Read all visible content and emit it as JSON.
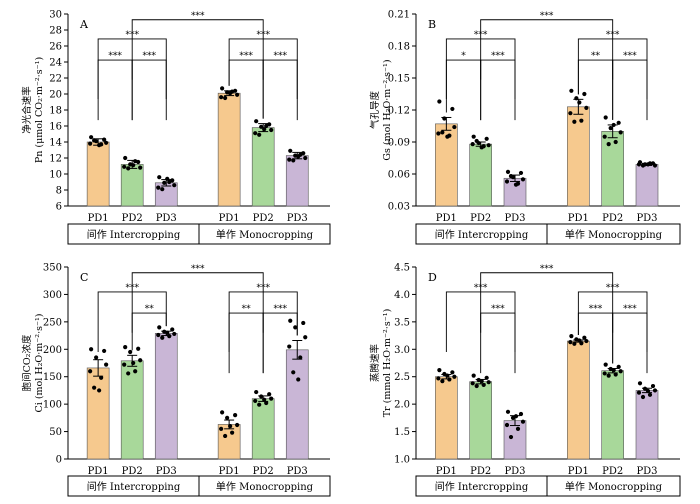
{
  "figure": {
    "colors": {
      "PD1": "#f6c98e",
      "PD2": "#a8d89a",
      "PD3": "#c9b6d6",
      "dots": "#000000",
      "lines": "#000000"
    },
    "group_labels": [
      "间作 Intercropping",
      "单作 Monocropping"
    ]
  },
  "chart_data": [
    {
      "panel": "A",
      "type": "bar",
      "ylabel_cn": "净光合速率",
      "ylabel_unit": "Pn (μmol CO₂·m⁻²·s⁻¹)",
      "ylim": [
        6,
        30
      ],
      "yticks": [
        6,
        8,
        10,
        12,
        14,
        16,
        18,
        20,
        22,
        24,
        26,
        28,
        30
      ],
      "categories": [
        "PD1",
        "PD2",
        "PD3"
      ],
      "groups": [
        {
          "name": "间作 Intercropping",
          "values": [
            14.0,
            11.2,
            8.9
          ],
          "errors": [
            0.4,
            0.5,
            0.4
          ],
          "points": [
            [
              14.6,
              14.3,
              14.1,
              13.9,
              13.8,
              13.7,
              14.2,
              13.6
            ],
            [
              12.0,
              11.5,
              11.2,
              10.8,
              10.9,
              11.6,
              10.7,
              11.1
            ],
            [
              9.6,
              9.2,
              8.9,
              8.6,
              8.3,
              9.0,
              8.1,
              9.4
            ]
          ]
        },
        {
          "name": "单作 Monocropping",
          "values": [
            20.1,
            15.8,
            12.3
          ],
          "errors": [
            0.3,
            0.5,
            0.4
          ],
          "points": [
            [
              20.7,
              20.4,
              20.2,
              19.9,
              19.6,
              20.3,
              19.5,
              20.1
            ],
            [
              16.6,
              16.2,
              15.9,
              15.5,
              15.1,
              16.0,
              14.9,
              15.6
            ],
            [
              12.9,
              12.6,
              12.3,
              12.0,
              11.8,
              12.4,
              11.7,
              12.2
            ]
          ]
        }
      ],
      "annotations": [
        {
          "from": [
            0,
            0
          ],
          "to": [
            0,
            1
          ],
          "label": "***",
          "level": 0
        },
        {
          "from": [
            0,
            1
          ],
          "to": [
            0,
            2
          ],
          "label": "***",
          "level": 0
        },
        {
          "from": [
            0,
            0
          ],
          "to": [
            0,
            2
          ],
          "label": "***",
          "level": 1
        },
        {
          "from": [
            1,
            0
          ],
          "to": [
            1,
            1
          ],
          "label": "***",
          "level": 0
        },
        {
          "from": [
            1,
            1
          ],
          "to": [
            1,
            2
          ],
          "label": "***",
          "level": 0
        },
        {
          "from": [
            1,
            0
          ],
          "to": [
            1,
            2
          ],
          "label": "***",
          "level": 1
        },
        {
          "from": [
            0,
            1
          ],
          "to": [
            1,
            1
          ],
          "label": "***",
          "level": 2
        }
      ]
    },
    {
      "panel": "B",
      "type": "bar",
      "ylabel_cn": "气孔导度",
      "ylabel_unit": "Gs (mol H₂O·m⁻²·s⁻¹)",
      "ylim": [
        0.03,
        0.21
      ],
      "yticks": [
        0.03,
        0.06,
        0.09,
        0.12,
        0.15,
        0.18,
        0.21
      ],
      "categories": [
        "PD1",
        "PD2",
        "PD3"
      ],
      "groups": [
        {
          "name": "间作 Intercropping",
          "values": [
            0.107,
            0.088,
            0.056
          ],
          "errors": [
            0.006,
            0.002,
            0.003
          ],
          "points": [
            [
              0.128,
              0.121,
              0.112,
              0.104,
              0.098,
              0.096,
              0.099,
              0.095
            ],
            [
              0.095,
              0.093,
              0.089,
              0.087,
              0.088,
              0.086,
              0.091,
              0.085
            ],
            [
              0.062,
              0.061,
              0.057,
              0.055,
              0.053,
              0.051,
              0.058,
              0.05
            ]
          ]
        },
        {
          "name": "单作 Monocropping",
          "values": [
            0.123,
            0.1,
            0.069
          ],
          "errors": [
            0.007,
            0.006,
            0.001
          ],
          "points": [
            [
              0.138,
              0.135,
              0.131,
              0.122,
              0.117,
              0.11,
              0.109,
              0.127
            ],
            [
              0.113,
              0.108,
              0.103,
              0.099,
              0.095,
              0.09,
              0.088,
              0.106
            ],
            [
              0.071,
              0.07,
              0.069,
              0.068,
              0.069,
              0.07,
              0.068,
              0.069
            ]
          ]
        }
      ],
      "annotations": [
        {
          "from": [
            0,
            0
          ],
          "to": [
            0,
            1
          ],
          "label": "*",
          "level": 0
        },
        {
          "from": [
            0,
            1
          ],
          "to": [
            0,
            2
          ],
          "label": "***",
          "level": 0
        },
        {
          "from": [
            0,
            0
          ],
          "to": [
            0,
            2
          ],
          "label": "***",
          "level": 1
        },
        {
          "from": [
            1,
            0
          ],
          "to": [
            1,
            1
          ],
          "label": "**",
          "level": 0
        },
        {
          "from": [
            1,
            1
          ],
          "to": [
            1,
            2
          ],
          "label": "***",
          "level": 0
        },
        {
          "from": [
            1,
            0
          ],
          "to": [
            1,
            2
          ],
          "label": "***",
          "level": 1
        },
        {
          "from": [
            0,
            1
          ],
          "to": [
            1,
            1
          ],
          "label": "***",
          "level": 2
        }
      ]
    },
    {
      "panel": "C",
      "type": "bar",
      "ylabel_cn": "胞间CO₂浓度",
      "ylabel_unit": "Ci (mol H₂O·m⁻²·s⁻¹)",
      "ylim": [
        0,
        350
      ],
      "yticks": [
        0,
        50,
        100,
        150,
        200,
        250,
        300,
        350
      ],
      "categories": [
        "PD1",
        "PD2",
        "PD3"
      ],
      "groups": [
        {
          "name": "间作 Intercropping",
          "values": [
            166,
            179,
            229
          ],
          "errors": [
            15,
            10,
            4
          ],
          "points": [
            [
              200,
              197,
              185,
              172,
              160,
              148,
              130,
              125
            ],
            [
              204,
              201,
              195,
              180,
              172,
              160,
              156,
              175
            ],
            [
              240,
              236,
              232,
              228,
              226,
              224,
              221,
              230
            ]
          ]
        },
        {
          "name": "单作 Monocropping",
          "values": [
            63,
            110,
            199
          ],
          "errors": [
            8,
            5,
            17
          ],
          "points": [
            [
              85,
              80,
              75,
              62,
              55,
              48,
              42,
              60
            ],
            [
              122,
              118,
              114,
              110,
              106,
              102,
              99,
              108
            ],
            [
              252,
              248,
              240,
              222,
              205,
              185,
              158,
              145
            ]
          ]
        }
      ],
      "annotations": [
        {
          "from": [
            0,
            1
          ],
          "to": [
            0,
            2
          ],
          "label": "**",
          "level": 0
        },
        {
          "from": [
            0,
            0
          ],
          "to": [
            0,
            2
          ],
          "label": "***",
          "level": 1
        },
        {
          "from": [
            1,
            0
          ],
          "to": [
            1,
            1
          ],
          "label": "**",
          "level": 0
        },
        {
          "from": [
            1,
            1
          ],
          "to": [
            1,
            2
          ],
          "label": "***",
          "level": 0
        },
        {
          "from": [
            1,
            0
          ],
          "to": [
            1,
            2
          ],
          "label": "***",
          "level": 1
        },
        {
          "from": [
            0,
            1
          ],
          "to": [
            1,
            1
          ],
          "label": "***",
          "level": 2
        }
      ]
    },
    {
      "panel": "D",
      "type": "bar",
      "ylabel_cn": "蒸腾速率",
      "ylabel_unit": "Tr (mmol H₂O·m⁻²·s⁻¹)",
      "ylim": [
        1.0,
        4.5
      ],
      "yticks": [
        1.0,
        1.5,
        2.0,
        2.5,
        3.0,
        3.5,
        4.0,
        4.5
      ],
      "categories": [
        "PD1",
        "PD2",
        "PD3"
      ],
      "groups": [
        {
          "name": "间作 Intercropping",
          "values": [
            2.5,
            2.41,
            1.7
          ],
          "errors": [
            0.04,
            0.04,
            0.09
          ],
          "points": [
            [
              2.62,
              2.58,
              2.55,
              2.5,
              2.47,
              2.45,
              2.42,
              2.52
            ],
            [
              2.52,
              2.48,
              2.44,
              2.4,
              2.38,
              2.35,
              2.33,
              2.42
            ],
            [
              1.86,
              1.82,
              1.75,
              1.68,
              1.62,
              1.55,
              1.4,
              1.78
            ]
          ]
        },
        {
          "name": "单作 Monocropping",
          "values": [
            3.15,
            2.61,
            2.25
          ],
          "errors": [
            0.02,
            0.04,
            0.04
          ],
          "points": [
            [
              3.24,
              3.21,
              3.18,
              3.15,
              3.13,
              3.11,
              3.1,
              3.16
            ],
            [
              2.72,
              2.68,
              2.64,
              2.6,
              2.56,
              2.54,
              2.52,
              2.62
            ],
            [
              2.38,
              2.33,
              2.28,
              2.25,
              2.21,
              2.17,
              2.13,
              2.24
            ]
          ]
        }
      ],
      "annotations": [
        {
          "from": [
            0,
            1
          ],
          "to": [
            0,
            2
          ],
          "label": "***",
          "level": 0
        },
        {
          "from": [
            0,
            0
          ],
          "to": [
            0,
            2
          ],
          "label": "***",
          "level": 1
        },
        {
          "from": [
            1,
            0
          ],
          "to": [
            1,
            1
          ],
          "label": "***",
          "level": 0
        },
        {
          "from": [
            1,
            1
          ],
          "to": [
            1,
            2
          ],
          "label": "***",
          "level": 0
        },
        {
          "from": [
            1,
            0
          ],
          "to": [
            1,
            2
          ],
          "label": "***",
          "level": 1
        },
        {
          "from": [
            0,
            1
          ],
          "to": [
            1,
            1
          ],
          "label": "***",
          "level": 2
        }
      ]
    }
  ]
}
